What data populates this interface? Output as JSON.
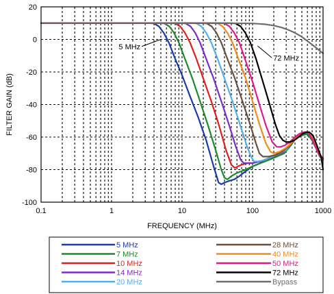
{
  "chart_data": {
    "type": "line",
    "title": "",
    "xlabel": "FREQUENCY (MHz)",
    "ylabel": "FILTER GAIN (dB)",
    "x_scale": "log",
    "xlim": [
      0.1,
      1000
    ],
    "ylim": [
      -100,
      20
    ],
    "x_ticks": [
      0.1,
      1,
      10,
      100,
      1000
    ],
    "x_tick_labels": [
      "0.1",
      "1",
      "10",
      "100",
      "1000"
    ],
    "y_ticks": [
      20,
      0,
      -20,
      -40,
      -60,
      -80,
      -100
    ],
    "y_tick_labels": [
      "20",
      "0",
      "-20",
      "-40",
      "-60",
      "-80",
      "-100"
    ],
    "grid": true,
    "legend_position": "bottom",
    "annotations": [
      {
        "text": "5 MHz",
        "x": 1.8,
        "y": -6,
        "arrow_to": [
          5,
          0
        ]
      },
      {
        "text": "72 MHz",
        "x": 300,
        "y": -13,
        "arrow_to": [
          118,
          -4
        ]
      }
    ],
    "series": [
      {
        "name": "5 MHz",
        "color": "#1a3aa8",
        "x": [
          0.1,
          3.3,
          4.0,
          4.7,
          5.5,
          6.5,
          8,
          10,
          13,
          17,
          22,
          28,
          33,
          36,
          40,
          46,
          55,
          65,
          80,
          100,
          130,
          170,
          220,
          280,
          350,
          420,
          500,
          600,
          700,
          800,
          900,
          1000
        ],
        "y": [
          10,
          10,
          9.8,
          8,
          4,
          -2,
          -12,
          -22,
          -35,
          -48,
          -62,
          -78,
          -88,
          -89,
          -88,
          -87,
          -86,
          -84,
          -81,
          -78,
          -76,
          -74,
          -72,
          -70,
          -65,
          -60,
          -59,
          -58,
          -62,
          -67,
          -72,
          -74
        ]
      },
      {
        "name": "7 MHz",
        "color": "#1a8a2a",
        "x": [
          0.1,
          4.6,
          5.6,
          6.6,
          7.7,
          9,
          11,
          14,
          18,
          23,
          30,
          36,
          40,
          44,
          50,
          60,
          80,
          100,
          130,
          170,
          220,
          280,
          350,
          420,
          500,
          600,
          700,
          800,
          900,
          1000
        ],
        "y": [
          10,
          10,
          9.8,
          8,
          4,
          -2,
          -12,
          -24,
          -38,
          -52,
          -68,
          -80,
          -85,
          -86,
          -84,
          -82,
          -80,
          -78,
          -76,
          -74,
          -72,
          -70,
          -65,
          -60,
          -59,
          -58,
          -62,
          -67,
          -72,
          -74
        ]
      },
      {
        "name": "10 MHz",
        "color": "#e21c1c",
        "x": [
          0.1,
          6.6,
          8,
          9.4,
          11,
          13,
          16,
          20,
          26,
          33,
          42,
          50,
          56,
          62,
          70,
          85,
          100,
          130,
          170,
          220,
          280,
          350,
          420,
          500,
          600,
          700,
          800,
          900,
          1000
        ],
        "y": [
          10,
          10,
          9.8,
          8,
          4,
          -2,
          -12,
          -24,
          -38,
          -52,
          -68,
          -77,
          -79,
          -78,
          -77,
          -76,
          -76,
          -75,
          -73,
          -71,
          -69,
          -64,
          -60,
          -58,
          -57,
          -60,
          -66,
          -71,
          -73
        ]
      },
      {
        "name": "14 MHz",
        "color": "#7b2bc8",
        "x": [
          0.1,
          9.3,
          11.2,
          13.2,
          15.4,
          18,
          22,
          28,
          36,
          46,
          58,
          68,
          75,
          85,
          100,
          130,
          170,
          220,
          280,
          350,
          420,
          500,
          600,
          700,
          800,
          900,
          1000
        ],
        "y": [
          10,
          10,
          9.8,
          8,
          4,
          -2,
          -12,
          -24,
          -38,
          -52,
          -66,
          -74,
          -76,
          -76,
          -76,
          -75,
          -73,
          -71,
          -69,
          -64,
          -60,
          -58,
          -57,
          -60,
          -66,
          -71,
          -73
        ]
      },
      {
        "name": "20 MHz",
        "color": "#4fb0ea",
        "x": [
          0.1,
          13.2,
          16,
          18.8,
          22,
          26,
          32,
          40,
          52,
          66,
          84,
          95,
          105,
          120,
          150,
          190,
          240,
          300,
          360,
          430,
          500,
          600,
          700,
          800,
          900,
          1000
        ],
        "y": [
          10,
          10,
          9.8,
          8,
          4,
          -2,
          -12,
          -24,
          -38,
          -52,
          -66,
          -72,
          -75,
          -75,
          -74,
          -72,
          -70,
          -68,
          -63,
          -60,
          -58,
          -57,
          -60,
          -66,
          -71,
          -73
        ]
      },
      {
        "name": "28 MHz",
        "color": "#6b4e3c",
        "x": [
          0.1,
          18.5,
          22.4,
          26.3,
          30.8,
          36,
          44,
          56,
          72,
          92,
          110,
          125,
          140,
          170,
          210,
          260,
          320,
          380,
          450,
          520,
          600,
          700,
          800,
          900,
          1000
        ],
        "y": [
          10,
          10,
          9.8,
          8,
          4,
          -2,
          -12,
          -24,
          -38,
          -52,
          -63,
          -70,
          -72,
          -72,
          -71,
          -69,
          -66,
          -61,
          -59,
          -58,
          -57,
          -60,
          -66,
          -71,
          -73
        ]
      },
      {
        "name": "40 MHz",
        "color": "#f28a1c",
        "x": [
          0.1,
          26.4,
          32,
          37.6,
          44,
          52,
          63,
          80,
          100,
          125,
          155,
          180,
          200,
          240,
          290,
          350,
          410,
          480,
          550,
          620,
          700,
          800,
          900,
          1000
        ],
        "y": [
          10,
          10,
          9.8,
          8,
          4,
          -2,
          -12,
          -24,
          -38,
          -52,
          -64,
          -69,
          -70,
          -69,
          -67,
          -64,
          -60,
          -58,
          -57,
          -57,
          -60,
          -66,
          -71,
          -73
        ]
      },
      {
        "name": "50 MHz",
        "color": "#e0188a",
        "x": [
          0.1,
          33,
          40,
          47,
          55,
          65,
          78,
          100,
          125,
          155,
          190,
          220,
          250,
          290,
          340,
          400,
          460,
          530,
          600,
          680,
          780,
          880,
          1000
        ],
        "y": [
          10,
          10,
          9.8,
          8,
          4,
          -2,
          -12,
          -26,
          -40,
          -53,
          -63,
          -66,
          -66,
          -65,
          -63,
          -60,
          -58,
          -57,
          -57,
          -60,
          -66,
          -71,
          -73
        ]
      },
      {
        "name": "72 MHz",
        "color": "#000000",
        "x": [
          0.1,
          47.5,
          57.6,
          67.7,
          79,
          93,
          112,
          140,
          175,
          210,
          240,
          270,
          300,
          340,
          390,
          450,
          510,
          570,
          640,
          720,
          800,
          880,
          940,
          1000
        ],
        "y": [
          10,
          10,
          9.8,
          8,
          4,
          -2,
          -12,
          -26,
          -40,
          -52,
          -59,
          -62,
          -63,
          -63,
          -62,
          -60,
          -58,
          -57,
          -57,
          -59,
          -64,
          -69,
          -72,
          -80
        ]
      },
      {
        "name": "Bypass",
        "color": "#6d6d6d",
        "x": [
          0.1,
          50,
          100,
          150,
          200,
          260,
          330,
          400,
          500,
          600,
          700,
          800,
          900,
          1000
        ],
        "y": [
          10,
          10,
          9.8,
          9.3,
          8.5,
          7.3,
          5.7,
          4,
          1.6,
          -1,
          -3.2,
          -5.2,
          -7,
          -8.6
        ]
      }
    ]
  }
}
